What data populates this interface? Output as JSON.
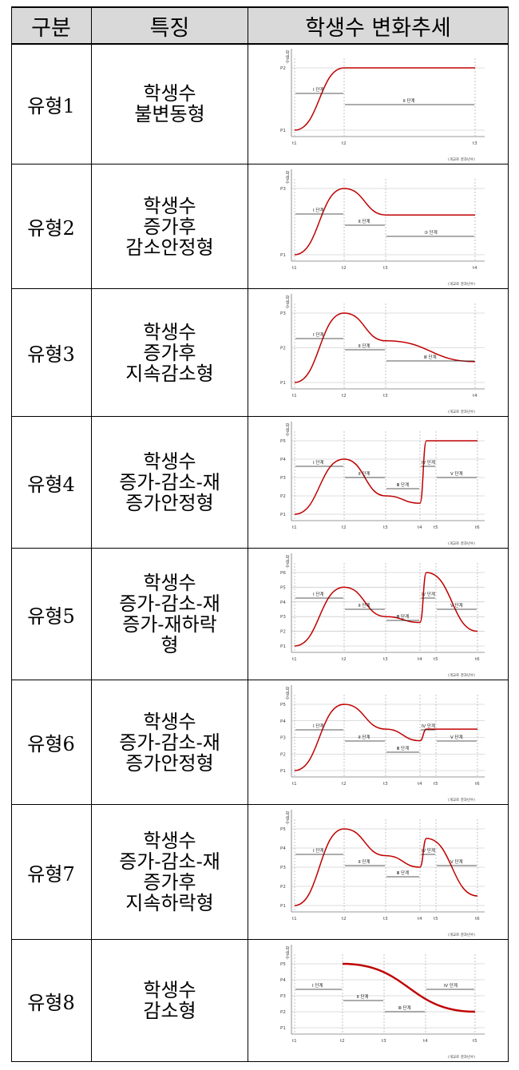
{
  "table": {
    "headers": {
      "category": "구분",
      "feature": "특징",
      "trend": "학생수 변화추세"
    },
    "rows": [
      {
        "category": "유형1",
        "feature": "학생수\n불변동형"
      },
      {
        "category": "유형2",
        "feature": "학생수\n증가후\n감소안정형"
      },
      {
        "category": "유형3",
        "feature": "학생수\n증가후\n지속감소형"
      },
      {
        "category": "유형4",
        "feature": "학생수\n증가-감소-재\n증가안정형"
      },
      {
        "category": "유형5",
        "feature": "학생수\n증가-감소-재\n증가-재하락\n형"
      },
      {
        "category": "유형6",
        "feature": "학생수\n증가-감소-재\n증가안정형"
      },
      {
        "category": "유형7",
        "feature": "학생수\n증가-감소-재\n증가후\n지속하락형"
      },
      {
        "category": "유형8",
        "feature": "학생수\n감소형"
      }
    ]
  },
  "chart_data": [
    {
      "type": "line",
      "ylabel": "학생수",
      "source_note": "(개교로 경과년수)",
      "x_ticks": [
        "t1",
        "t2",
        "t3"
      ],
      "y_ticks": [
        "P1",
        "P2"
      ],
      "stages": [
        "Ⅰ 단계",
        "Ⅱ 단계"
      ],
      "series": [
        {
          "points": [
            [
              0,
              1
            ],
            [
              1,
              2
            ],
            [
              2,
              2
            ]
          ]
        }
      ]
    },
    {
      "type": "line",
      "ylabel": "학생수",
      "source_note": "(개교로 경과년수)",
      "x_ticks": [
        "t1",
        "t2",
        "t3",
        "t4"
      ],
      "y_ticks": [
        "P1",
        "P3"
      ],
      "stages": [
        "Ⅰ 단계",
        "Ⅱ 단계",
        "③ 단계"
      ],
      "series": [
        {
          "points": [
            [
              0,
              1
            ],
            [
              1,
              3
            ],
            [
              2,
              2.2
            ],
            [
              3,
              2.2
            ]
          ]
        }
      ]
    },
    {
      "type": "line",
      "ylabel": "학생수",
      "source_note": "(개교로 경과년수)",
      "x_ticks": [
        "t1",
        "t2",
        "t3",
        "t4"
      ],
      "y_ticks": [
        "P1",
        "P2",
        "P3"
      ],
      "stages": [
        "Ⅰ 단계",
        "Ⅱ 단계",
        "Ⅲ 단계"
      ],
      "series": [
        {
          "points": [
            [
              0,
              1
            ],
            [
              1,
              3
            ],
            [
              2,
              2.2
            ],
            [
              3,
              1.6
            ]
          ]
        }
      ]
    },
    {
      "type": "line",
      "ylabel": "학생수",
      "source_note": "(개교로 경과년수)",
      "x_ticks": [
        "t1",
        "t2",
        "t3",
        "t4",
        "t5",
        "t6"
      ],
      "y_ticks": [
        "P1",
        "P2",
        "P3",
        "P4",
        "P5"
      ],
      "stages": [
        "Ⅰ 단계",
        "Ⅱ 단계",
        "Ⅲ 단계",
        "Ⅳ 단계",
        "Ⅴ 단계"
      ],
      "series": [
        {
          "points": [
            [
              0,
              1
            ],
            [
              1,
              4
            ],
            [
              2,
              2
            ],
            [
              3,
              1.6
            ],
            [
              3.4,
              5
            ],
            [
              5,
              5
            ]
          ]
        }
      ]
    },
    {
      "type": "line",
      "ylabel": "학생수",
      "source_note": "(개교로 경과년수)",
      "x_ticks": [
        "t1",
        "t2",
        "t3",
        "t4",
        "t5",
        "t6"
      ],
      "y_ticks": [
        "P1",
        "P2",
        "P3",
        "P4",
        "P5",
        "P6"
      ],
      "stages": [
        "Ⅰ 단계",
        "Ⅱ 단계",
        "Ⅲ 단계",
        "Ⅳ 단계",
        "Ⅴ 단계"
      ],
      "series": [
        {
          "points": [
            [
              0,
              1
            ],
            [
              1,
              5
            ],
            [
              2,
              3
            ],
            [
              3,
              2.6
            ],
            [
              3.4,
              6
            ],
            [
              5,
              2
            ]
          ]
        }
      ]
    },
    {
      "type": "line",
      "ylabel": "학생수",
      "source_note": "(개교로 경과년수)",
      "x_ticks": [
        "t1",
        "t2",
        "t3",
        "t4",
        "t5",
        "t6"
      ],
      "y_ticks": [
        "P1",
        "P2",
        "P3",
        "P4",
        "P5"
      ],
      "stages": [
        "Ⅰ 단계",
        "Ⅱ 단계",
        "Ⅲ 단계",
        "Ⅳ 단계",
        "Ⅴ 단계"
      ],
      "series": [
        {
          "points": [
            [
              0,
              1
            ],
            [
              1,
              5
            ],
            [
              2,
              3.5
            ],
            [
              3,
              2.8
            ],
            [
              3.4,
              3.5
            ],
            [
              5,
              3.5
            ]
          ]
        }
      ]
    },
    {
      "type": "line",
      "ylabel": "학생수",
      "source_note": "(개교로 경과년수)",
      "x_ticks": [
        "t1",
        "t2",
        "t3",
        "t4",
        "t5",
        "t6"
      ],
      "y_ticks": [
        "P1",
        "P2",
        "P3",
        "P4",
        "P5"
      ],
      "stages": [
        "Ⅰ 단계",
        "Ⅱ 단계",
        "Ⅲ 단계",
        "Ⅳ 단계",
        "Ⅴ 단계"
      ],
      "series": [
        {
          "points": [
            [
              0,
              1
            ],
            [
              1,
              5
            ],
            [
              2,
              3.6
            ],
            [
              3,
              3
            ],
            [
              3.4,
              4.5
            ],
            [
              5,
              1.5
            ]
          ]
        }
      ]
    },
    {
      "type": "line",
      "ylabel": "학생수",
      "source_note": "(개교로 경과년수)",
      "x_ticks": [
        "t1",
        "t2",
        "t3",
        "t4",
        "t5"
      ],
      "y_ticks": [
        "P1",
        "P2",
        "P3",
        "P4",
        "P5"
      ],
      "stages": [
        "Ⅰ 단계",
        "Ⅱ 단계",
        "Ⅲ 단계",
        "Ⅳ 단계"
      ],
      "series": [
        {
          "points": [
            [
              1,
              5
            ],
            [
              4,
              2
            ]
          ]
        }
      ]
    }
  ]
}
